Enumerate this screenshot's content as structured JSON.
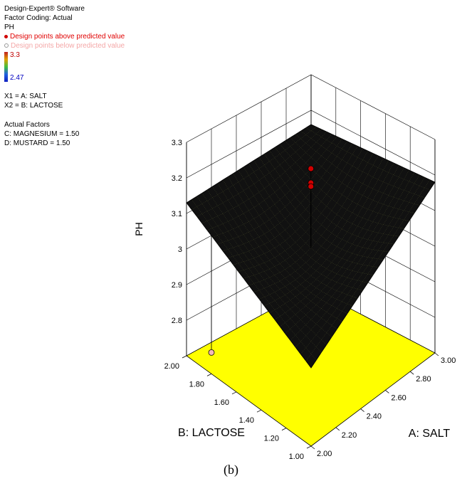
{
  "legend": {
    "software": "Design-Expert® Software",
    "coding": "Factor Coding: Actual",
    "response": "PH",
    "above_label": "Design points above predicted value",
    "below_label": "Design points below predicted value",
    "color_max": "3.3",
    "color_min": "2.47",
    "x1": "X1 = A: SALT",
    "x2": "X2 = B: LACTOSE",
    "actual_title": "Actual Factors",
    "actual_c": "C: MAGNESIUM = 1.50",
    "actual_d": "D: MUSTARD = 1.50"
  },
  "caption": "(b)",
  "colors": {
    "floor": "#ffff00",
    "surface_dark": "#111111",
    "surface_grid": "#c8d860",
    "point_above": "#d00000",
    "point_below": "#f4b8b8"
  },
  "chart_data": {
    "type": "surface",
    "title": "",
    "x_axis": {
      "label": "A: SALT",
      "range": [
        2.0,
        3.0
      ],
      "ticks": [
        "2.00",
        "2.20",
        "2.40",
        "2.60",
        "2.80",
        "3.00"
      ]
    },
    "y_axis": {
      "label": "B: LACTOSE",
      "range": [
        1.0,
        2.0
      ],
      "ticks": [
        "1.00",
        "1.20",
        "1.40",
        "1.60",
        "1.80",
        "2.00"
      ]
    },
    "z_axis": {
      "label": "PH",
      "range": [
        2.7,
        3.3
      ],
      "ticks": [
        "2.8",
        "2.9",
        "3",
        "3.1",
        "3.2",
        "3.3"
      ]
    },
    "surface_corners": [
      {
        "salt": 2.0,
        "lactose": 1.0,
        "ph": 2.92
      },
      {
        "salt": 2.0,
        "lactose": 2.0,
        "ph": 3.13
      },
      {
        "salt": 3.0,
        "lactose": 1.0,
        "ph": 3.18
      },
      {
        "salt": 3.0,
        "lactose": 2.0,
        "ph": 3.16
      }
    ],
    "design_points": [
      {
        "salt": 2.5,
        "lactose": 1.5,
        "ph": 3.24,
        "position": "above"
      },
      {
        "salt": 2.5,
        "lactose": 1.5,
        "ph": 3.2,
        "position": "above"
      },
      {
        "salt": 2.5,
        "lactose": 1.5,
        "ph": 3.19,
        "position": "above"
      },
      {
        "salt": 2.0,
        "lactose": 1.8,
        "ph": 2.76,
        "position": "below"
      }
    ],
    "grid": true
  }
}
